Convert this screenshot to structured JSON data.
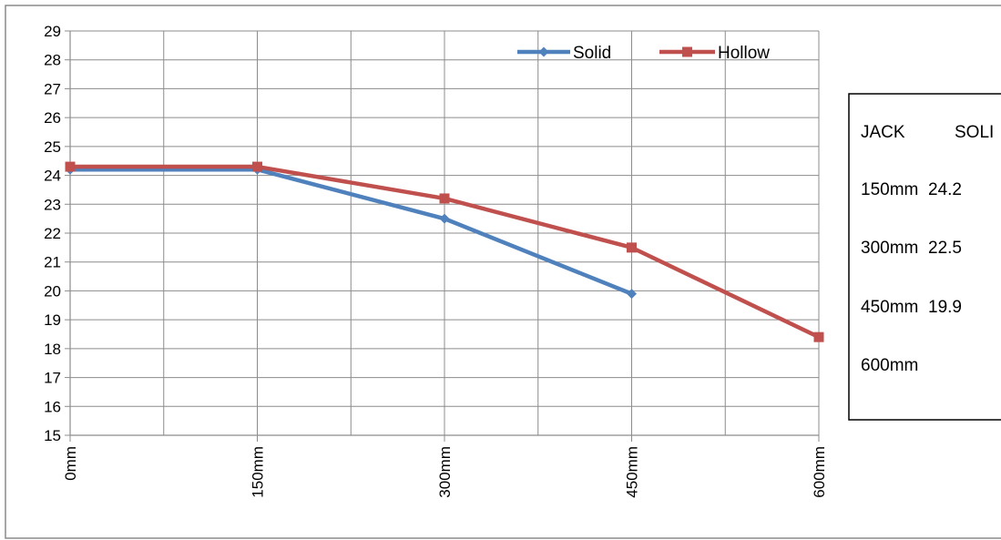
{
  "chart_data": {
    "type": "line",
    "title": "",
    "xlabel": "",
    "ylabel": "",
    "categories": [
      "0mm",
      "150mm",
      "300mm",
      "450mm",
      "600mm"
    ],
    "ylim": [
      15,
      29
    ],
    "y_ticks": [
      15,
      16,
      17,
      18,
      19,
      20,
      21,
      22,
      23,
      24,
      25,
      26,
      27,
      28,
      29
    ],
    "grid": true,
    "legend_position": "top-right",
    "series": [
      {
        "name": "Solid",
        "values": [
          24.2,
          24.2,
          22.5,
          19.9,
          null
        ],
        "color": "#4F81BD",
        "marker": "diamond"
      },
      {
        "name": "Hollow",
        "values": [
          24.3,
          24.3,
          23.2,
          21.5,
          18.4
        ],
        "color": "#C0504D",
        "marker": "square"
      }
    ],
    "data_table": {
      "header": [
        "JACK",
        "SOLI"
      ],
      "rows": [
        [
          "150mm",
          "24.2"
        ],
        [
          "300mm",
          "22.5"
        ],
        [
          "450mm",
          "19.9"
        ],
        [
          "600mm",
          ""
        ]
      ]
    }
  }
}
